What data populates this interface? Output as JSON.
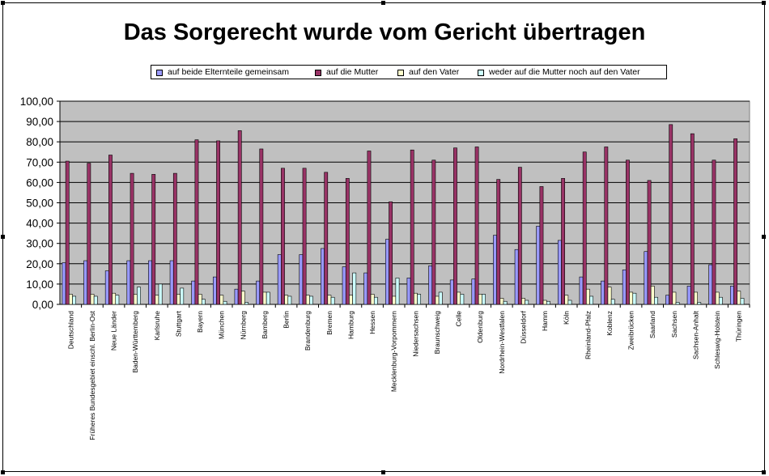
{
  "chart_data": {
    "type": "bar",
    "title": "Das Sorgerecht wurde vom Gericht übertragen",
    "xlabel": "",
    "ylabel": "",
    "ylim": [
      0,
      100
    ],
    "yticks": [
      "0,00",
      "10,00",
      "20,00",
      "30,00",
      "40,00",
      "50,00",
      "60,00",
      "70,00",
      "80,00",
      "90,00",
      "100,00"
    ],
    "grid": true,
    "legend_position": "top",
    "categories": [
      "Deutschland",
      "Früheres Bundesgebiet einschl. Berlin-Ost",
      "Neue Länder",
      "Baden-Württemberg",
      "Karlsruhe",
      "Stuttgart",
      "Bayern",
      "München",
      "Nürnberg",
      "Bamberg",
      "Berlin",
      "Brandenburg",
      "Bremen",
      "Hamburg",
      "Hessen",
      "Mecklenburg-Vorpommern",
      "Niedersachsen",
      "Braunschweig",
      "Celle",
      "Oldenburg",
      "Nordrhein-Westfalen",
      "Düsseldorf",
      "Hamm",
      "Köln",
      "Rheinland-Pfalz",
      "Koblenz",
      "Zweibrücken",
      "Saarland",
      "Sachsen",
      "Sachsen-Anhalt",
      "Schleswig-Holstein",
      "Thüringen"
    ],
    "series": [
      {
        "name": "auf beide Elternteile gemeinsam",
        "color": "#9999ff",
        "values": [
          20.5,
          21.5,
          16.5,
          21.5,
          21.5,
          21.5,
          11.5,
          13.5,
          7.5,
          11.5,
          24.5,
          24.5,
          27.5,
          18.5,
          15.5,
          32,
          13,
          19,
          12,
          12.5,
          34,
          27,
          38.5,
          31.5,
          13.5,
          11.5,
          17,
          26,
          4.5,
          9,
          19.5,
          9
        ]
      },
      {
        "name": "auf die Mutter",
        "color": "#993366",
        "values": [
          70.5,
          69.5,
          73.5,
          64.5,
          64,
          64.5,
          81,
          80.5,
          85.5,
          76.5,
          67,
          67,
          65,
          62,
          75.5,
          50.5,
          76,
          71,
          77,
          77.5,
          61.5,
          67.5,
          58,
          62,
          75,
          77.5,
          71,
          61,
          88.5,
          84,
          71,
          81.5
        ]
      },
      {
        "name": "auf den Vater",
        "color": "#ffffcc",
        "values": [
          5,
          5,
          5.5,
          5,
          4.5,
          5,
          5,
          4.5,
          6.5,
          6,
          4.5,
          4.5,
          4.5,
          4.5,
          5,
          4,
          5.5,
          4,
          6,
          5,
          3,
          3,
          2,
          4.5,
          7.5,
          8.5,
          6,
          9,
          6,
          6,
          6,
          6.5
        ]
      },
      {
        "name": "weder auf die Mutter noch auf den Vater",
        "color": "#ccffff",
        "values": [
          4,
          4,
          4.5,
          8.5,
          10,
          8,
          2.5,
          1.5,
          1,
          6,
          4,
          4,
          3.5,
          15.5,
          3.5,
          13,
          5,
          6,
          5,
          5,
          1.5,
          2,
          1.5,
          2,
          4,
          2.5,
          5.5,
          3.5,
          1,
          1,
          3.5,
          3
        ]
      }
    ]
  }
}
